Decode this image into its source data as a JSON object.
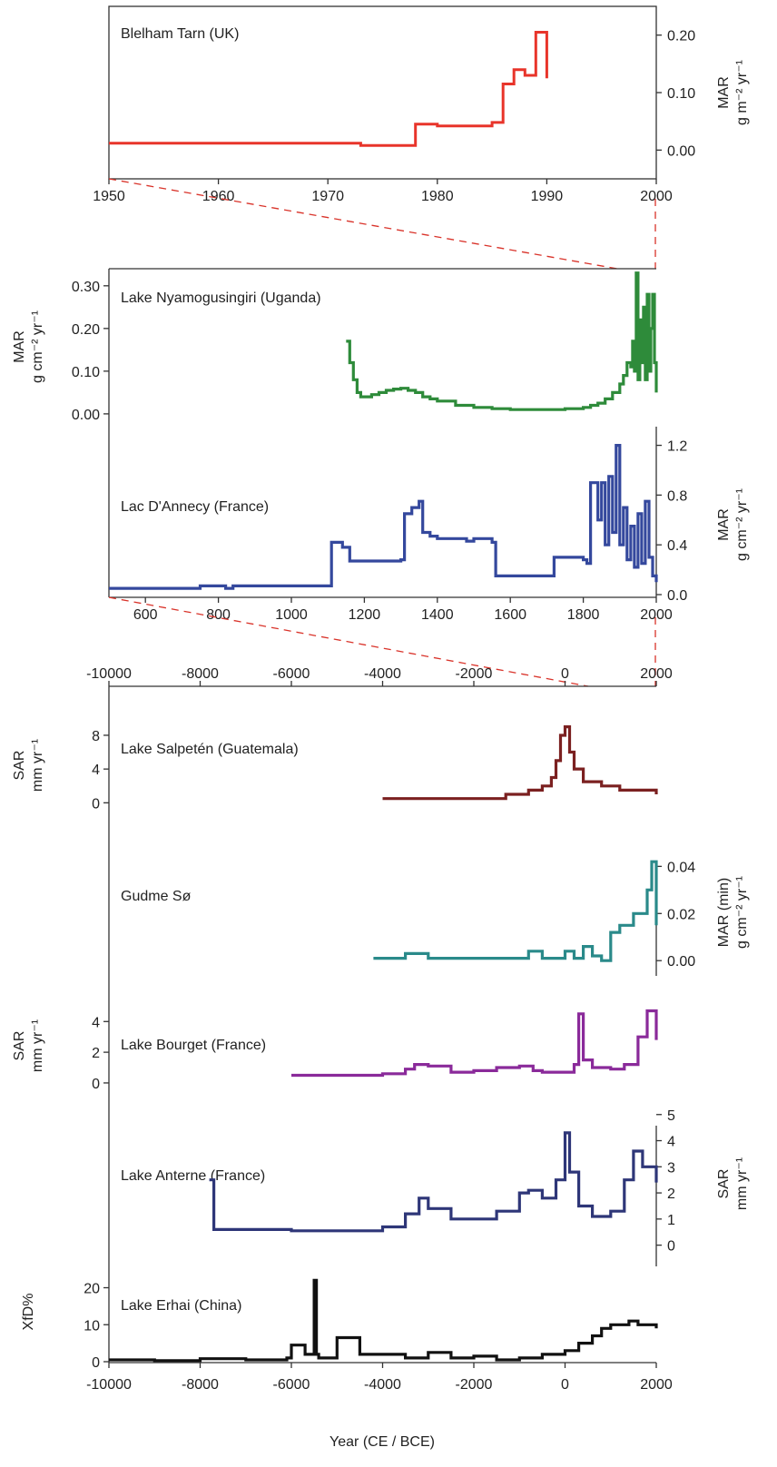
{
  "chart_data": [
    {
      "type": "line",
      "panel": "top",
      "series": [
        {
          "name": "Blelham Tarn (UK)",
          "color": "#e8342a",
          "x": [
            1950,
            1973,
            1973,
            1978,
            1978,
            1980,
            1980,
            1985,
            1985,
            1986,
            1986,
            1987,
            1987,
            1988,
            1988,
            1989,
            1989,
            1990,
            1990
          ],
          "y": [
            0.012,
            0.012,
            0.008,
            0.008,
            0.045,
            0.045,
            0.042,
            0.042,
            0.048,
            0.048,
            0.115,
            0.115,
            0.14,
            0.14,
            0.13,
            0.13,
            0.205,
            0.205,
            0.125
          ]
        }
      ],
      "x_axis": {
        "range": [
          1950,
          2000
        ],
        "ticks": [
          "1950",
          "1960",
          "1970",
          "1980",
          "1990",
          "2000"
        ]
      },
      "y_axis": {
        "side": "right",
        "range": [
          -0.05,
          0.25
        ],
        "ticks": [
          "0.00",
          "0.10",
          "0.20"
        ],
        "label_lines": [
          "MAR",
          "g m⁻² yr⁻¹"
        ]
      }
    },
    {
      "type": "line",
      "panel": "middle",
      "series": [
        {
          "name": "Lake Nyamogusingiri (Uganda)",
          "color": "#2e8b3a",
          "y_axis": "left",
          "x": [
            1150,
            1160,
            1170,
            1180,
            1190,
            1200,
            1220,
            1240,
            1260,
            1280,
            1300,
            1320,
            1340,
            1360,
            1380,
            1400,
            1450,
            1500,
            1550,
            1600,
            1650,
            1700,
            1750,
            1800,
            1820,
            1840,
            1860,
            1880,
            1900,
            1910,
            1920,
            1930,
            1935,
            1940,
            1945,
            1950,
            1955,
            1960,
            1965,
            1970,
            1975,
            1980,
            1985,
            1990,
            1995,
            2000
          ],
          "y": [
            0.17,
            0.12,
            0.08,
            0.05,
            0.04,
            0.04,
            0.045,
            0.05,
            0.055,
            0.058,
            0.06,
            0.055,
            0.05,
            0.04,
            0.035,
            0.03,
            0.02,
            0.015,
            0.012,
            0.01,
            0.01,
            0.01,
            0.012,
            0.015,
            0.02,
            0.025,
            0.035,
            0.05,
            0.07,
            0.09,
            0.12,
            0.11,
            0.17,
            0.1,
            0.33,
            0.08,
            0.22,
            0.12,
            0.25,
            0.08,
            0.28,
            0.1,
            0.2,
            0.28,
            0.12,
            0.05
          ]
        },
        {
          "name": "Lac D'Annecy (France)",
          "color": "#34489d",
          "y_axis": "right",
          "x": [
            500,
            730,
            750,
            820,
            840,
            1100,
            1110,
            1140,
            1160,
            1300,
            1310,
            1330,
            1350,
            1360,
            1380,
            1400,
            1450,
            1480,
            1500,
            1550,
            1560,
            1700,
            1720,
            1800,
            1810,
            1820,
            1830,
            1840,
            1850,
            1860,
            1870,
            1880,
            1890,
            1900,
            1910,
            1920,
            1930,
            1940,
            1950,
            1960,
            1970,
            1980,
            1990,
            2000
          ],
          "y": [
            0.05,
            0.05,
            0.07,
            0.05,
            0.07,
            0.07,
            0.42,
            0.38,
            0.27,
            0.28,
            0.65,
            0.7,
            0.75,
            0.5,
            0.47,
            0.45,
            0.45,
            0.43,
            0.45,
            0.42,
            0.15,
            0.15,
            0.3,
            0.28,
            0.25,
            0.9,
            0.9,
            0.6,
            0.9,
            0.4,
            0.95,
            0.5,
            1.2,
            0.4,
            0.7,
            0.28,
            0.55,
            0.22,
            0.65,
            0.25,
            0.75,
            0.3,
            0.15,
            0.1
          ]
        }
      ],
      "x_axis": {
        "range": [
          500,
          2000
        ],
        "ticks": [
          "600",
          "800",
          "1000",
          "1200",
          "1400",
          "1600",
          "1800",
          "2000"
        ]
      },
      "y_axis_left": {
        "range": [
          -0.03,
          0.34
        ],
        "ticks": [
          "0.00",
          "0.10",
          "0.20",
          "0.30"
        ],
        "label_lines": [
          "MAR",
          "g cm⁻² yr⁻¹"
        ]
      },
      "y_axis_right": {
        "range": [
          0,
          1.35
        ],
        "ticks": [
          "0.0",
          "0.4",
          "0.8",
          "1.2"
        ],
        "label_lines": [
          "MAR",
          "g cm⁻² yr⁻¹"
        ]
      }
    },
    {
      "type": "line",
      "panel": "bottom",
      "x_axis": {
        "range": [
          -10000,
          2000
        ],
        "ticks": [
          "-10000",
          "-8000",
          "-6000",
          "-4000",
          "-2000",
          "0",
          "2000"
        ],
        "label": "Year (CE / BCE)"
      },
      "series": [
        {
          "name": "Lake Salpetén (Guatemala)",
          "color": "#7b2020",
          "axis": {
            "side": "left",
            "range": [
              -0.5,
              9.5
            ],
            "ticks": [
              "0",
              "4",
              "8"
            ],
            "label_lines": [
              "SAR",
              "mm yr⁻¹"
            ]
          },
          "x": [
            -4000,
            -1400,
            -1300,
            -800,
            -500,
            -300,
            -200,
            -100,
            0,
            100,
            200,
            400,
            800,
            1200,
            2000
          ],
          "y": [
            0.5,
            0.5,
            1,
            1.5,
            2,
            3,
            5,
            8,
            9,
            6,
            4,
            2.5,
            2,
            1.5,
            1
          ]
        },
        {
          "name": "Gudme Sø",
          "color": "#2a8a8a",
          "axis": {
            "side": "right",
            "range": [
              -0.003,
              0.044
            ],
            "ticks": [
              "0.00",
              "0.02",
              "0.04"
            ],
            "label_lines": [
              "MAR (min)",
              "g cm⁻² yr⁻¹"
            ]
          },
          "x": [
            -4200,
            -3500,
            -3000,
            -2000,
            -1000,
            -800,
            -500,
            0,
            200,
            400,
            600,
            800,
            1000,
            1200,
            1500,
            1800,
            1900,
            2000
          ],
          "y": [
            0.001,
            0.003,
            0.001,
            0.001,
            0.001,
            0.004,
            0.001,
            0.004,
            0.001,
            0.006,
            0.002,
            0.0,
            0.012,
            0.015,
            0.02,
            0.03,
            0.042,
            0.015
          ]
        },
        {
          "name": "Lake Bourget (France)",
          "color": "#8a2a9a",
          "axis": {
            "side": "left",
            "range": [
              -0.3,
              5.2
            ],
            "ticks": [
              "0",
              "2",
              "4"
            ],
            "label_lines": [
              "SAR",
              "mm yr⁻¹"
            ]
          },
          "x": [
            -6000,
            -4000,
            -3500,
            -3300,
            -3000,
            -2500,
            -2000,
            -1500,
            -1000,
            -700,
            -500,
            0,
            200,
            300,
            400,
            600,
            1000,
            1300,
            1600,
            1800,
            2000
          ],
          "y": [
            0.5,
            0.6,
            0.9,
            1.2,
            1.1,
            0.7,
            0.8,
            1,
            1.1,
            0.8,
            0.7,
            0.7,
            1.2,
            4.5,
            1.5,
            1.0,
            0.9,
            1.2,
            3,
            4.7,
            2.8
          ]
        },
        {
          "name": "Lake Anterne (France)",
          "color": "#2e3678",
          "axis": {
            "side": "right",
            "range": [
              -0.5,
              5.2
            ],
            "ticks": [
              "0",
              "1",
              "2",
              "3",
              "4",
              "5"
            ],
            "label_lines": [
              "SAR",
              "mm yr⁻¹"
            ]
          },
          "x": [
            -7800,
            -7700,
            -7000,
            -6000,
            -4000,
            -3500,
            -3200,
            -3000,
            -2500,
            -2000,
            -1500,
            -1000,
            -800,
            -500,
            -200,
            0,
            100,
            300,
            600,
            1000,
            1300,
            1500,
            1700,
            2000
          ],
          "y": [
            2.5,
            0.6,
            0.6,
            0.55,
            0.7,
            1.2,
            1.8,
            1.4,
            1,
            1,
            1.3,
            2,
            2.1,
            1.8,
            2.5,
            4.3,
            2.8,
            1.5,
            1.1,
            1.3,
            2.5,
            3.6,
            3,
            2.4
          ]
        },
        {
          "name": "Lake Erhai (China)",
          "color": "#111111",
          "axis": {
            "side": "left",
            "range": [
              0,
              27
            ],
            "ticks": [
              "0",
              "10",
              "20"
            ],
            "label_lines": [
              "XfD%"
            ]
          },
          "x": [
            -10000,
            -9000,
            -8000,
            -7000,
            -6100,
            -6000,
            -5700,
            -5500,
            -5450,
            -5400,
            -5000,
            -4500,
            -3500,
            -3000,
            -2500,
            -2000,
            -1500,
            -1000,
            -500,
            0,
            300,
            600,
            800,
            1000,
            1200,
            1400,
            1600,
            1800,
            2000
          ],
          "y": [
            0.5,
            0.3,
            0.8,
            0.5,
            1,
            4.5,
            2,
            22,
            2,
            1,
            6.5,
            2,
            1,
            2.5,
            1,
            1.5,
            0.5,
            1,
            2,
            3,
            5,
            7,
            9,
            10,
            10,
            11,
            10,
            10,
            9
          ]
        }
      ]
    }
  ]
}
